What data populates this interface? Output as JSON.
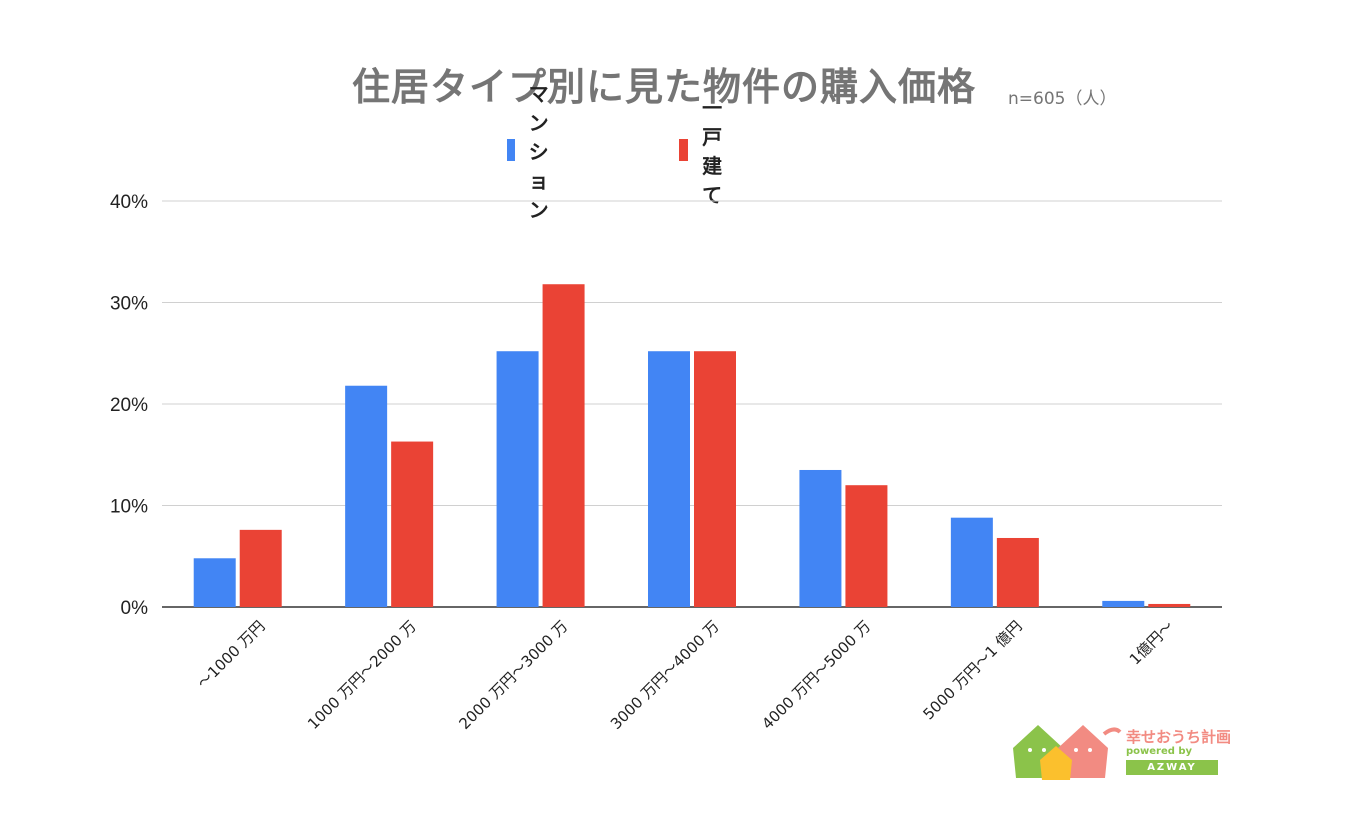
{
  "chart_data": {
    "type": "bar",
    "title": "住居タイプ別に見た物件の購入価格",
    "subtitle": "n=605（人）",
    "xlabel": "",
    "ylabel": "",
    "ylim": [
      0,
      40
    ],
    "yticks": [
      "0%",
      "10%",
      "20%",
      "30%",
      "40%"
    ],
    "grid": true,
    "legend_position": "top-center",
    "categories": [
      "～1000 万円",
      "1000 万円～2000 万",
      "2000 万円～3000 万",
      "3000 万円～4000 万",
      "4000 万円～5000 万",
      "5000 万円～1 億円",
      "1億円～"
    ],
    "series": [
      {
        "name": "マンション",
        "color": "#4285f4",
        "values": [
          4.8,
          21.8,
          25.2,
          25.2,
          13.5,
          8.8,
          0.6
        ]
      },
      {
        "name": "一戸建て",
        "color": "#ea4335",
        "values": [
          7.6,
          16.3,
          31.8,
          25.2,
          12.0,
          6.8,
          0.3
        ]
      }
    ]
  },
  "logo": {
    "text": "幸せおうち計画",
    "sub": "powered by",
    "badge": "AZWAY"
  }
}
